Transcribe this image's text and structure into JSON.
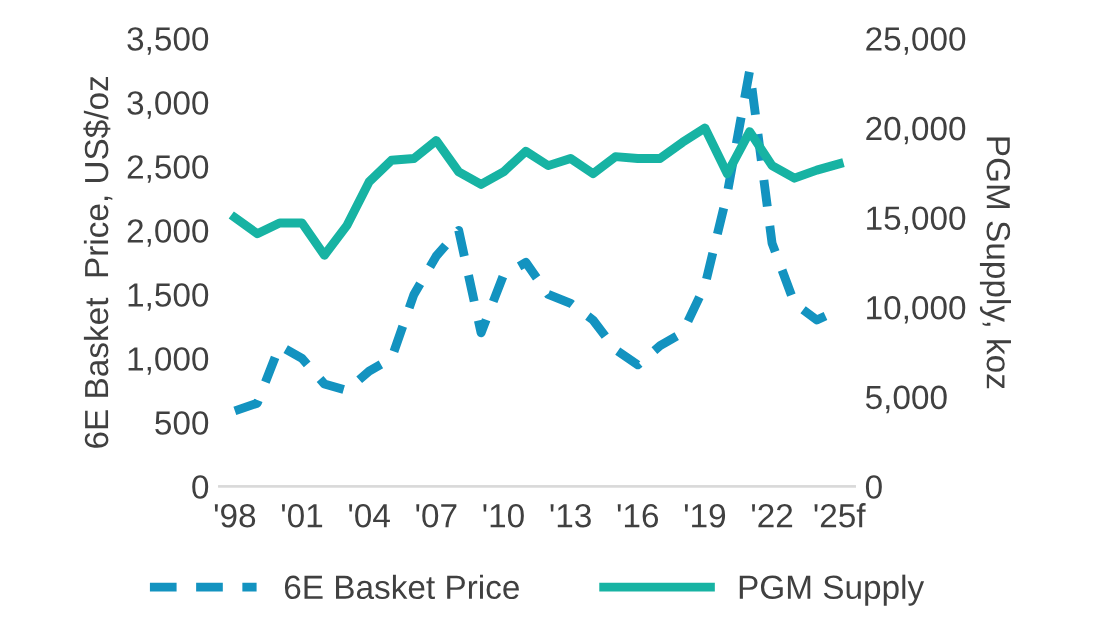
{
  "chart_data": {
    "type": "line",
    "categories": [
      "'98",
      null,
      null,
      "'01",
      null,
      null,
      "'04",
      null,
      null,
      "'07",
      null,
      null,
      "'10",
      null,
      null,
      "'13",
      null,
      null,
      "'16",
      null,
      null,
      "'19",
      null,
      null,
      "'22",
      null,
      null,
      "'25f"
    ],
    "ylabel": "6E Basket  Price, US$/oz",
    "y2label": "PGM Supply, koz",
    "ylim": [
      0,
      3500
    ],
    "yticks": [
      {
        "value": 0,
        "label": "0"
      },
      {
        "value": 500,
        "label": "500"
      },
      {
        "value": 1000,
        "label": "1,000"
      },
      {
        "value": 1500,
        "label": "1,500"
      },
      {
        "value": 2000,
        "label": "2,000"
      },
      {
        "value": 2500,
        "label": "2,500"
      },
      {
        "value": 3000,
        "label": "3,000"
      },
      {
        "value": 3500,
        "label": "3,500"
      }
    ],
    "y2lim": [
      0,
      25000
    ],
    "y2ticks": [
      {
        "value": 0,
        "label": "0"
      },
      {
        "value": 5000,
        "label": "5,000"
      },
      {
        "value": 10000,
        "label": "10,000"
      },
      {
        "value": 15000,
        "label": "15,000"
      },
      {
        "value": 20000,
        "label": "20,000"
      },
      {
        "value": 25000,
        "label": "25,000"
      }
    ],
    "series": [
      {
        "name": "6E Basket Price",
        "color": "#1393c0",
        "line_style": "dashed",
        "values": [
          590,
          650,
          1100,
          1000,
          800,
          750,
          900,
          1000,
          1500,
          1800,
          2000,
          1200,
          1650,
          1750,
          1500,
          1430,
          1300,
          1070,
          950,
          1100,
          1200,
          1570,
          2290,
          3250,
          1900,
          1430,
          1300,
          1380
        ]
      },
      {
        "name": "PGM Supply",
        "color": "#17b3a3",
        "axis": "y2",
        "line_style": "solid",
        "values": [
          15000,
          14100,
          14700,
          14700,
          12900,
          14550,
          17000,
          18200,
          18300,
          19300,
          17550,
          16850,
          17550,
          18700,
          17900,
          18300,
          17450,
          18400,
          18300,
          18300,
          19200,
          20000,
          17450,
          19800,
          17900,
          17200,
          17650,
          18000
        ]
      }
    ],
    "legend": "bottom",
    "grid": false,
    "marker": "none"
  }
}
